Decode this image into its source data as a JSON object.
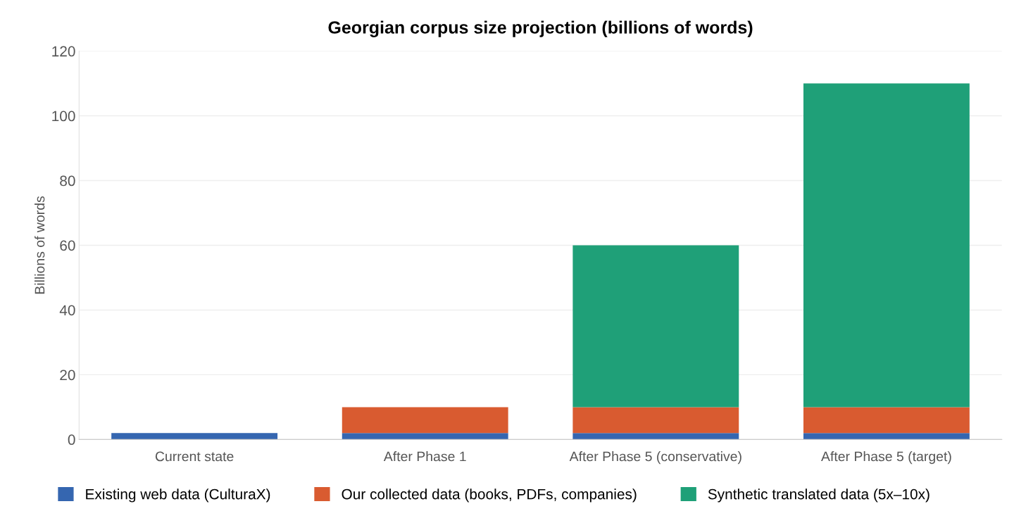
{
  "chart_data": {
    "type": "bar",
    "stacked": true,
    "title": "Georgian corpus size projection (billions of words)",
    "ylabel": "Billions of words",
    "categories": [
      "Current state",
      "After Phase 1",
      "After Phase 5 (conservative)",
      "After Phase 5 (target)"
    ],
    "series": [
      {
        "name": "Existing web data (CulturaX)",
        "color": "#3566b0",
        "values": [
          2,
          2,
          2,
          2
        ]
      },
      {
        "name": "Our collected data (books, PDFs, companies)",
        "color": "#d95b30",
        "values": [
          0,
          8,
          8,
          8
        ]
      },
      {
        "name": "Synthetic translated data (5x–10x)",
        "color": "#1fa078",
        "values": [
          0,
          0,
          50,
          100
        ]
      }
    ],
    "ylim": [
      0,
      120
    ],
    "yticks": [
      0,
      20,
      40,
      60,
      80,
      100,
      120
    ],
    "grid": "y",
    "legend": "bottom"
  }
}
